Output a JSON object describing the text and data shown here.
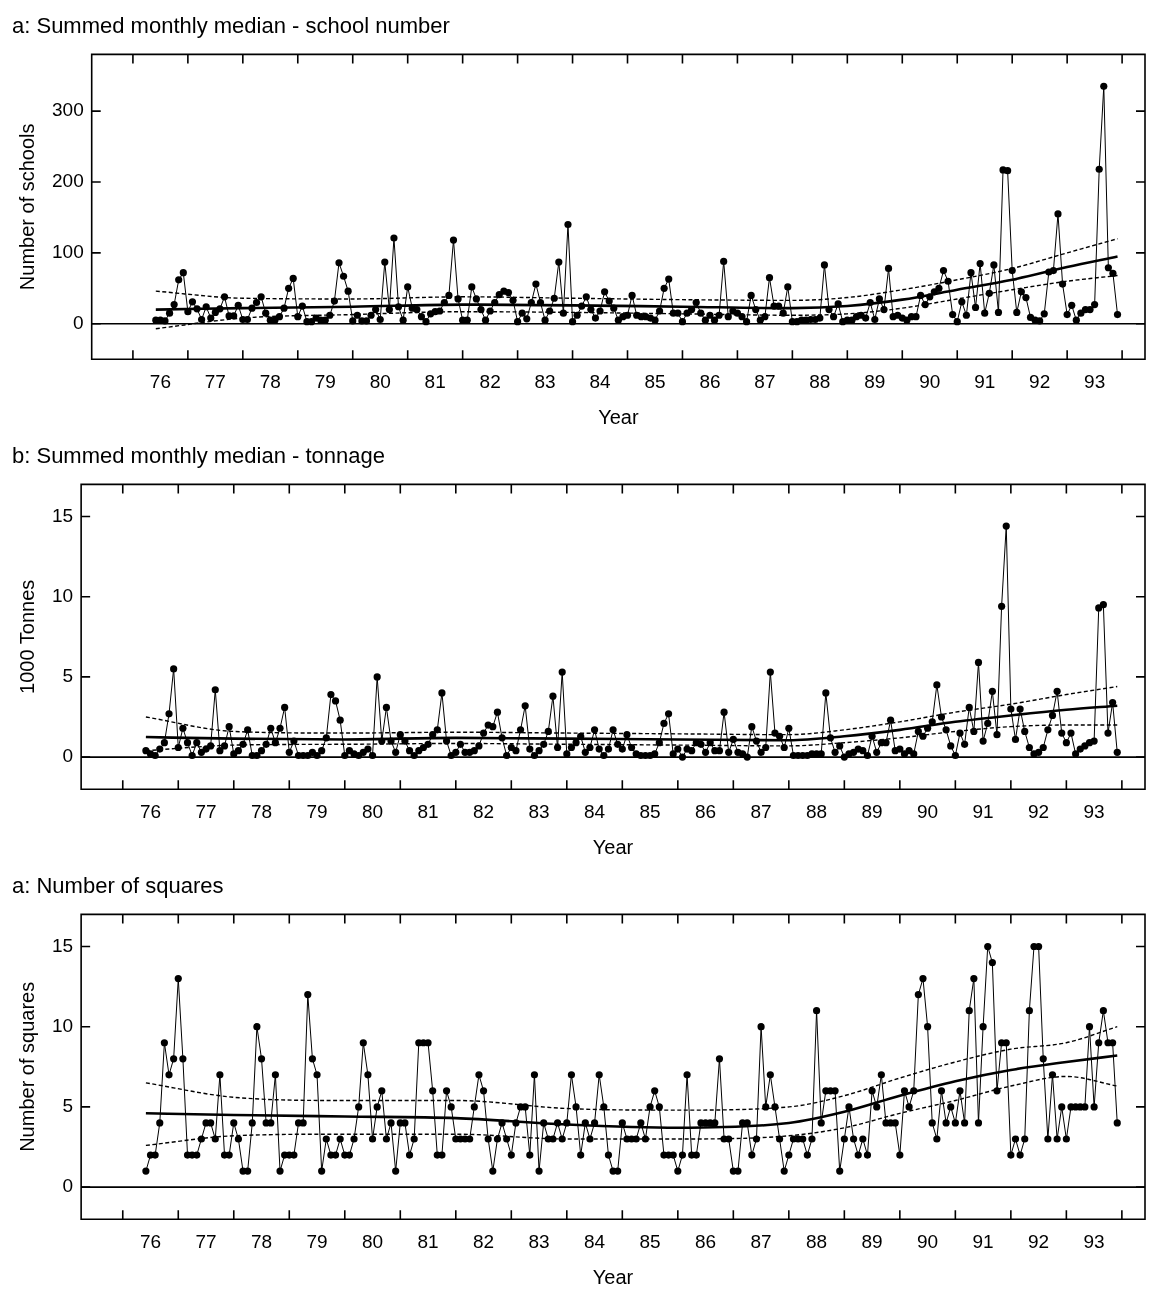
{
  "chart_data": [
    {
      "type": "line",
      "title": "a: Summed monthly median - school number",
      "xlabel": "Year",
      "ylabel": "Number of schools",
      "x": [
        "1976-06",
        "1976-07",
        "1976-08",
        "1976-09",
        "1976-10",
        "1976-11",
        "1976-12",
        "1977-01",
        "1977-02",
        "1977-03",
        "1977-04",
        "1977-05",
        "1977-06",
        "1977-07",
        "1977-08",
        "1977-09",
        "1977-10",
        "1977-11",
        "1977-12",
        "1978-01",
        "1978-02",
        "1978-03",
        "1978-04",
        "1978-05",
        "1978-06",
        "1978-07",
        "1978-08",
        "1978-09",
        "1978-10",
        "1978-11",
        "1978-12",
        "1979-01",
        "1979-02",
        "1979-03",
        "1979-04",
        "1979-05",
        "1979-06",
        "1979-07",
        "1979-08",
        "1979-09",
        "1979-10",
        "1979-11",
        "1979-12",
        "1980-01",
        "1980-02",
        "1980-03",
        "1980-04",
        "1980-05",
        "1980-06",
        "1980-07",
        "1980-08",
        "1980-09",
        "1980-10",
        "1980-11",
        "1980-12",
        "1981-01",
        "1981-02",
        "1981-03",
        "1981-04",
        "1981-05",
        "1981-06",
        "1981-07",
        "1981-08",
        "1981-09",
        "1981-10",
        "1981-11",
        "1981-12",
        "1982-01",
        "1982-02",
        "1982-03",
        "1982-04",
        "1982-05",
        "1982-06",
        "1982-07",
        "1982-08",
        "1982-09",
        "1982-10",
        "1982-11",
        "1982-12",
        "1983-01",
        "1983-02",
        "1983-03",
        "1983-04",
        "1983-05",
        "1983-06",
        "1983-07",
        "1983-08",
        "1983-09",
        "1983-10",
        "1983-11",
        "1983-12",
        "1984-01",
        "1984-02",
        "1984-03",
        "1984-04",
        "1984-05",
        "1984-06",
        "1984-07",
        "1984-08",
        "1984-09",
        "1984-10",
        "1984-11",
        "1984-12",
        "1985-01",
        "1985-02",
        "1985-03",
        "1985-04",
        "1985-05",
        "1985-06",
        "1985-07",
        "1985-08",
        "1985-09",
        "1985-10",
        "1985-11",
        "1985-12",
        "1986-01",
        "1986-02",
        "1986-03",
        "1986-04",
        "1986-05",
        "1986-06",
        "1986-07",
        "1986-08",
        "1986-09",
        "1986-10",
        "1986-11",
        "1986-12",
        "1987-01",
        "1987-02",
        "1987-03",
        "1987-04",
        "1987-05",
        "1987-06",
        "1987-07",
        "1987-08",
        "1987-09",
        "1987-10",
        "1987-11",
        "1987-12",
        "1988-01",
        "1988-02",
        "1988-03",
        "1988-04",
        "1988-05",
        "1988-06",
        "1988-07",
        "1988-08",
        "1988-09",
        "1988-10",
        "1988-11",
        "1988-12",
        "1989-01",
        "1989-02",
        "1989-03",
        "1989-04",
        "1989-05",
        "1989-06",
        "1989-07",
        "1989-08",
        "1989-09",
        "1989-10",
        "1989-11",
        "1989-12",
        "1990-01",
        "1990-02",
        "1990-03",
        "1990-04",
        "1990-05",
        "1990-06",
        "1990-07",
        "1990-08",
        "1990-09",
        "1990-10",
        "1990-11",
        "1990-12",
        "1991-01",
        "1991-02",
        "1991-03",
        "1991-04",
        "1991-05",
        "1991-06",
        "1991-07",
        "1991-08",
        "1991-09",
        "1991-10",
        "1991-11",
        "1991-12",
        "1992-01",
        "1992-02",
        "1992-03",
        "1992-04",
        "1992-05",
        "1992-06",
        "1992-07",
        "1992-08",
        "1992-09",
        "1992-10",
        "1992-11",
        "1992-12",
        "1993-01",
        "1993-02",
        "1993-03",
        "1993-04",
        "1993-05",
        "1993-06",
        "1993-07",
        "1993-08",
        "1993-09",
        "1993-10",
        "1993-11",
        "1993-12"
      ],
      "series": [
        {
          "color": "#000000",
          "marker": "circle",
          "line_style": "solid",
          "values": [
            5,
            5,
            4,
            15,
            27,
            62,
            72,
            17,
            31,
            21,
            6,
            24,
            8,
            16,
            21,
            38,
            11,
            11,
            26,
            6,
            6,
            22,
            30,
            38,
            15,
            5,
            5,
            10,
            22,
            50,
            64,
            10,
            25,
            3,
            3,
            8,
            5,
            5,
            12,
            32,
            86,
            67,
            46,
            4,
            12,
            4,
            4,
            12,
            20,
            6,
            87,
            20,
            121,
            24,
            5,
            52,
            22,
            20,
            10,
            3,
            14,
            17,
            18,
            30,
            40,
            118,
            35,
            5,
            5,
            52,
            35,
            20,
            5,
            18,
            30,
            41,
            46,
            44,
            33,
            3,
            15,
            7,
            30,
            56,
            30,
            5,
            18,
            36,
            87,
            15,
            140,
            3,
            12,
            25,
            38,
            20,
            8,
            18,
            45,
            32,
            22,
            5,
            10,
            12,
            40,
            12,
            10,
            10,
            8,
            5,
            18,
            50,
            63,
            15,
            15,
            3,
            15,
            20,
            30,
            15,
            5,
            12,
            5,
            12,
            88,
            10,
            18,
            15,
            10,
            3,
            40,
            20,
            5,
            10,
            65,
            25,
            25,
            15,
            52,
            3,
            3,
            5,
            5,
            6,
            6,
            8,
            83,
            20,
            10,
            28,
            3,
            5,
            5,
            10,
            12,
            8,
            30,
            6,
            35,
            20,
            78,
            10,
            12,
            8,
            5,
            10,
            10,
            40,
            27,
            38,
            45,
            50,
            75,
            60,
            13,
            3,
            31,
            12,
            72,
            23,
            85,
            15,
            43,
            83,
            16,
            217,
            216,
            75,
            16,
            45,
            37,
            9,
            5,
            4,
            14,
            73,
            75,
            155,
            56,
            13,
            26,
            5,
            15,
            20,
            20,
            27,
            218,
            335,
            79,
            71,
            13
          ]
        },
        {
          "type": "line",
          "color": "#000000",
          "marker": "none",
          "line_style": "solid",
          "x": [
            "1976-06",
            "1978-01",
            "1980-01",
            "1982-01",
            "1984-01",
            "1986-01",
            "1988-01",
            "1989-01",
            "1990-01",
            "1991-01",
            "1992-01",
            "1993-01",
            "1993-12"
          ],
          "values": [
            20,
            22,
            24,
            27,
            26,
            24,
            22,
            25,
            34,
            48,
            62,
            80,
            95
          ]
        },
        {
          "type": "line",
          "color": "#000000",
          "marker": "none",
          "line_style": "dashed",
          "x": [
            "1976-06",
            "1978-01",
            "1980-01",
            "1982-01",
            "1984-01",
            "1986-01",
            "1988-01",
            "1989-01",
            "1990-01",
            "1991-01",
            "1992-01",
            "1993-01",
            "1993-12"
          ],
          "values": [
            -7,
            8,
            13,
            17,
            16,
            14,
            12,
            14,
            22,
            35,
            48,
            60,
            68
          ]
        },
        {
          "type": "line",
          "color": "#000000",
          "marker": "none",
          "line_style": "dashed",
          "x": [
            "1976-06",
            "1978-01",
            "1980-01",
            "1982-01",
            "1984-01",
            "1986-01",
            "1988-01",
            "1989-01",
            "1990-01",
            "1991-01",
            "1992-01",
            "1993-01",
            "1993-12"
          ],
          "values": [
            46,
            36,
            35,
            38,
            36,
            34,
            33,
            37,
            48,
            62,
            78,
            100,
            120
          ]
        }
      ],
      "xlim": [
        "1975-04-01",
        "1994-06-01"
      ],
      "xticks": [
        {
          "value": "1976-01-01",
          "label": null
        },
        {
          "value": "1976-07-01",
          "label": "76"
        },
        {
          "value": "1977-01-01",
          "label": null
        },
        {
          "value": "1977-07-01",
          "label": "77"
        },
        {
          "value": "1978-01-01",
          "label": null
        },
        {
          "value": "1978-07-01",
          "label": "78"
        },
        {
          "value": "1979-01-01",
          "label": null
        },
        {
          "value": "1979-07-01",
          "label": "79"
        },
        {
          "value": "1980-01-01",
          "label": null
        },
        {
          "value": "1980-07-01",
          "label": "80"
        },
        {
          "value": "1981-01-01",
          "label": null
        },
        {
          "value": "1981-07-01",
          "label": "81"
        },
        {
          "value": "1982-01-01",
          "label": null
        },
        {
          "value": "1982-07-01",
          "label": "82"
        },
        {
          "value": "1983-01-01",
          "label": null
        },
        {
          "value": "1983-07-01",
          "label": "83"
        },
        {
          "value": "1984-01-01",
          "label": null
        },
        {
          "value": "1984-07-01",
          "label": "84"
        },
        {
          "value": "1985-01-01",
          "label": null
        },
        {
          "value": "1985-07-01",
          "label": "85"
        },
        {
          "value": "1986-01-01",
          "label": null
        },
        {
          "value": "1986-07-01",
          "label": "86"
        },
        {
          "value": "1987-01-01",
          "label": null
        },
        {
          "value": "1987-07-01",
          "label": "87"
        },
        {
          "value": "1988-01-01",
          "label": null
        },
        {
          "value": "1988-07-01",
          "label": "88"
        },
        {
          "value": "1989-01-01",
          "label": null
        },
        {
          "value": "1989-07-01",
          "label": "89"
        },
        {
          "value": "1990-01-01",
          "label": null
        },
        {
          "value": "1990-07-01",
          "label": "90"
        },
        {
          "value": "1991-01-01",
          "label": null
        },
        {
          "value": "1991-07-01",
          "label": "91"
        },
        {
          "value": "1992-01-01",
          "label": null
        },
        {
          "value": "1992-07-01",
          "label": "92"
        },
        {
          "value": "1993-01-01",
          "label": null
        },
        {
          "value": "1993-07-01",
          "label": "93"
        },
        {
          "value": "1994-01-01",
          "label": null
        }
      ],
      "ylim": [
        -50,
        380
      ],
      "yticks": [
        0,
        100,
        200,
        300
      ],
      "ref_lines": [
        {
          "axis": "y",
          "value": 0,
          "color": "#000000"
        }
      ]
    },
    {
      "type": "line",
      "title": "b: Summed monthly median - tonnage",
      "xlabel": "Year",
      "ylabel": "1000 Tonnes",
      "x": [
        "1976-06",
        "1976-07",
        "1976-08",
        "1976-09",
        "1976-10",
        "1976-11",
        "1976-12",
        "1977-01",
        "1977-02",
        "1977-03",
        "1977-04",
        "1977-05",
        "1977-06",
        "1977-07",
        "1977-08",
        "1977-09",
        "1977-10",
        "1977-11",
        "1977-12",
        "1978-01",
        "1978-02",
        "1978-03",
        "1978-04",
        "1978-05",
        "1978-06",
        "1978-07",
        "1978-08",
        "1978-09",
        "1978-10",
        "1978-11",
        "1978-12",
        "1979-01",
        "1979-02",
        "1979-03",
        "1979-04",
        "1979-05",
        "1979-06",
        "1979-07",
        "1979-08",
        "1979-09",
        "1979-10",
        "1979-11",
        "1979-12",
        "1980-01",
        "1980-02",
        "1980-03",
        "1980-04",
        "1980-05",
        "1980-06",
        "1980-07",
        "1980-08",
        "1980-09",
        "1980-10",
        "1980-11",
        "1980-12",
        "1981-01",
        "1981-02",
        "1981-03",
        "1981-04",
        "1981-05",
        "1981-06",
        "1981-07",
        "1981-08",
        "1981-09",
        "1981-10",
        "1981-11",
        "1981-12",
        "1982-01",
        "1982-02",
        "1982-03",
        "1982-04",
        "1982-05",
        "1982-06",
        "1982-07",
        "1982-08",
        "1982-09",
        "1982-10",
        "1982-11",
        "1982-12",
        "1983-01",
        "1983-02",
        "1983-03",
        "1983-04",
        "1983-05",
        "1983-06",
        "1983-07",
        "1983-08",
        "1983-09",
        "1983-10",
        "1983-11",
        "1983-12",
        "1984-01",
        "1984-02",
        "1984-03",
        "1984-04",
        "1984-05",
        "1984-06",
        "1984-07",
        "1984-08",
        "1984-09",
        "1984-10",
        "1984-11",
        "1984-12",
        "1985-01",
        "1985-02",
        "1985-03",
        "1985-04",
        "1985-05",
        "1985-06",
        "1985-07",
        "1985-08",
        "1985-09",
        "1985-10",
        "1985-11",
        "1985-12",
        "1986-01",
        "1986-02",
        "1986-03",
        "1986-04",
        "1986-05",
        "1986-06",
        "1986-07",
        "1986-08",
        "1986-09",
        "1986-10",
        "1986-11",
        "1986-12",
        "1987-01",
        "1987-02",
        "1987-03",
        "1987-04",
        "1987-05",
        "1987-06",
        "1987-07",
        "1987-08",
        "1987-09",
        "1987-10",
        "1987-11",
        "1987-12",
        "1988-01",
        "1988-02",
        "1988-03",
        "1988-04",
        "1988-05",
        "1988-06",
        "1988-07",
        "1988-08",
        "1988-09",
        "1988-10",
        "1988-11",
        "1988-12",
        "1989-01",
        "1989-02",
        "1989-03",
        "1989-04",
        "1989-05",
        "1989-06",
        "1989-07",
        "1989-08",
        "1989-09",
        "1989-10",
        "1989-11",
        "1989-12",
        "1990-01",
        "1990-02",
        "1990-03",
        "1990-04",
        "1990-05",
        "1990-06",
        "1990-07",
        "1990-08",
        "1990-09",
        "1990-10",
        "1990-11",
        "1990-12",
        "1991-01",
        "1991-02",
        "1991-03",
        "1991-04",
        "1991-05",
        "1991-06",
        "1991-07",
        "1991-08",
        "1991-09",
        "1991-10",
        "1991-11",
        "1991-12",
        "1992-01",
        "1992-02",
        "1992-03",
        "1992-04",
        "1992-05",
        "1992-06",
        "1992-07",
        "1992-08",
        "1992-09",
        "1992-10",
        "1992-11",
        "1992-12",
        "1993-01",
        "1993-02",
        "1993-03",
        "1993-04",
        "1993-05",
        "1993-06",
        "1993-07",
        "1993-08",
        "1993-09",
        "1993-10",
        "1993-11",
        "1993-12"
      ],
      "series": [
        {
          "color": "#000000",
          "marker": "circle",
          "line_style": "solid",
          "values": [
            0.4,
            0.2,
            0.1,
            0.5,
            0.9,
            2.7,
            5.5,
            0.6,
            1.8,
            0.9,
            0.1,
            0.9,
            0.3,
            0.5,
            0.7,
            4.2,
            0.4,
            0.7,
            1.9,
            0.2,
            0.4,
            0.8,
            1.7,
            0.1,
            0.1,
            0.4,
            0.8,
            1.8,
            0.9,
            1.8,
            3.1,
            0.3,
            1.0,
            0.1,
            0.1,
            0.1,
            0.3,
            0.1,
            0.4,
            1.2,
            3.9,
            3.5,
            2.3,
            0.1,
            0.4,
            0.2,
            0.1,
            0.3,
            0.5,
            0.1,
            5.0,
            1.0,
            3.1,
            1.0,
            0.3,
            1.4,
            1.0,
            0.4,
            0.1,
            0.4,
            0.6,
            0.8,
            1.4,
            1.7,
            4.0,
            1.0,
            0.1,
            0.3,
            0.8,
            0.3,
            0.3,
            0.4,
            0.7,
            1.5,
            2.0,
            1.9,
            2.8,
            1.2,
            0.1,
            0.6,
            0.4,
            1.7,
            3.2,
            0.5,
            0.1,
            0.4,
            0.8,
            1.6,
            3.8,
            0.6,
            5.3,
            0.2,
            0.6,
            0.9,
            1.3,
            0.3,
            0.6,
            1.7,
            0.5,
            0.1,
            0.5,
            1.7,
            0.8,
            0.5,
            1.4,
            0.6,
            0.2,
            0.1,
            0.1,
            0.1,
            0.2,
            0.9,
            2.1,
            2.7,
            0.2,
            0.5,
            0.0,
            0.5,
            0.4,
            0.9,
            0.8,
            0.3,
            0.9,
            0.4,
            0.4,
            2.8,
            0.3,
            1.1,
            0.3,
            0.2,
            0.0,
            1.9,
            1.0,
            0.3,
            0.6,
            5.3,
            1.5,
            1.3,
            0.6,
            1.8,
            0.1,
            0.1,
            0.1,
            0.1,
            0.2,
            0.2,
            0.2,
            4.0,
            1.2,
            0.3,
            0.7,
            0.0,
            0.2,
            0.3,
            0.5,
            0.4,
            0.1,
            1.3,
            0.3,
            0.9,
            0.9,
            2.3,
            0.4,
            0.5,
            0.2,
            0.4,
            0.2,
            1.6,
            1.3,
            1.8,
            2.2,
            4.5,
            2.5,
            1.7,
            0.7,
            0.1,
            1.5,
            0.8,
            3.1,
            1.6,
            5.9,
            1.0,
            2.1,
            4.1,
            1.4,
            9.4,
            14.4,
            3.0,
            1.1,
            3.0,
            1.6,
            0.6,
            0.2,
            0.3,
            0.6,
            1.7,
            2.6,
            4.1,
            1.5,
            0.9,
            1.5,
            0.2,
            0.5,
            0.7,
            0.9,
            1.0,
            9.3,
            9.5,
            1.5,
            3.4,
            0.3
          ]
        },
        {
          "type": "line",
          "color": "#000000",
          "marker": "none",
          "line_style": "solid",
          "x": [
            "1976-06",
            "1978-01",
            "1980-01",
            "1982-01",
            "1984-01",
            "1986-01",
            "1988-01",
            "1989-01",
            "1990-01",
            "1991-01",
            "1992-01",
            "1993-01",
            "1993-12"
          ],
          "values": [
            1.25,
            1.15,
            1.1,
            1.2,
            1.15,
            1.1,
            1.05,
            1.3,
            1.7,
            2.2,
            2.6,
            2.95,
            3.2
          ]
        },
        {
          "type": "line",
          "color": "#000000",
          "marker": "none",
          "line_style": "dashed",
          "x": [
            "1976-06",
            "1978-01",
            "1980-01",
            "1982-01",
            "1984-01",
            "1986-01",
            "1988-01",
            "1989-01",
            "1990-01",
            "1991-01",
            "1992-01",
            "1993-01",
            "1993-12"
          ],
          "values": [
            0.4,
            0.75,
            0.8,
            0.85,
            0.8,
            0.75,
            0.7,
            0.9,
            1.2,
            1.6,
            1.9,
            2.0,
            2.0
          ]
        },
        {
          "type": "line",
          "color": "#000000",
          "marker": "none",
          "line_style": "dashed",
          "x": [
            "1976-06",
            "1978-01",
            "1980-01",
            "1982-01",
            "1984-01",
            "1986-01",
            "1988-01",
            "1989-01",
            "1990-01",
            "1991-01",
            "1992-01",
            "1993-01",
            "1993-12"
          ],
          "values": [
            2.5,
            1.6,
            1.5,
            1.55,
            1.5,
            1.45,
            1.4,
            1.7,
            2.2,
            2.8,
            3.3,
            3.9,
            4.4
          ]
        }
      ],
      "xlim": [
        "1975-04-01",
        "1994-06-01"
      ],
      "xticks": [
        {
          "value": "1976-01-01",
          "label": null
        },
        {
          "value": "1976-07-01",
          "label": "76"
        },
        {
          "value": "1977-01-01",
          "label": null
        },
        {
          "value": "1977-07-01",
          "label": "77"
        },
        {
          "value": "1978-01-01",
          "label": null
        },
        {
          "value": "1978-07-01",
          "label": "78"
        },
        {
          "value": "1979-01-01",
          "label": null
        },
        {
          "value": "1979-07-01",
          "label": "79"
        },
        {
          "value": "1980-01-01",
          "label": null
        },
        {
          "value": "1980-07-01",
          "label": "80"
        },
        {
          "value": "1981-01-01",
          "label": null
        },
        {
          "value": "1981-07-01",
          "label": "81"
        },
        {
          "value": "1982-01-01",
          "label": null
        },
        {
          "value": "1982-07-01",
          "label": "82"
        },
        {
          "value": "1983-01-01",
          "label": null
        },
        {
          "value": "1983-07-01",
          "label": "83"
        },
        {
          "value": "1984-01-01",
          "label": null
        },
        {
          "value": "1984-07-01",
          "label": "84"
        },
        {
          "value": "1985-01-01",
          "label": null
        },
        {
          "value": "1985-07-01",
          "label": "85"
        },
        {
          "value": "1986-01-01",
          "label": null
        },
        {
          "value": "1986-07-01",
          "label": "86"
        },
        {
          "value": "1987-01-01",
          "label": null
        },
        {
          "value": "1987-07-01",
          "label": "87"
        },
        {
          "value": "1988-01-01",
          "label": null
        },
        {
          "value": "1988-07-01",
          "label": "88"
        },
        {
          "value": "1989-01-01",
          "label": null
        },
        {
          "value": "1989-07-01",
          "label": "89"
        },
        {
          "value": "1990-01-01",
          "label": null
        },
        {
          "value": "1990-07-01",
          "label": "90"
        },
        {
          "value": "1991-01-01",
          "label": null
        },
        {
          "value": "1991-07-01",
          "label": "91"
        },
        {
          "value": "1992-01-01",
          "label": null
        },
        {
          "value": "1992-07-01",
          "label": "92"
        },
        {
          "value": "1993-01-01",
          "label": null
        },
        {
          "value": "1993-07-01",
          "label": "93"
        },
        {
          "value": "1994-01-01",
          "label": null
        }
      ],
      "ylim": [
        -2,
        17
      ],
      "yticks": [
        0,
        5,
        10,
        15
      ],
      "ref_lines": [
        {
          "axis": "y",
          "value": 0,
          "color": "#000000"
        }
      ]
    },
    {
      "type": "line",
      "title": "a: Number of squares",
      "xlabel": "Year",
      "ylabel": "Number of squares",
      "x": [
        "1976-06",
        "1976-07",
        "1976-08",
        "1976-09",
        "1976-10",
        "1976-11",
        "1976-12",
        "1977-01",
        "1977-02",
        "1977-03",
        "1977-04",
        "1977-05",
        "1977-06",
        "1977-07",
        "1977-08",
        "1977-09",
        "1977-10",
        "1977-11",
        "1977-12",
        "1978-01",
        "1978-02",
        "1978-03",
        "1978-04",
        "1978-05",
        "1978-06",
        "1978-07",
        "1978-08",
        "1978-09",
        "1978-10",
        "1978-11",
        "1978-12",
        "1979-01",
        "1979-02",
        "1979-03",
        "1979-04",
        "1979-05",
        "1979-06",
        "1979-07",
        "1979-08",
        "1979-09",
        "1979-10",
        "1979-11",
        "1979-12",
        "1980-01",
        "1980-02",
        "1980-03",
        "1980-04",
        "1980-05",
        "1980-06",
        "1980-07",
        "1980-08",
        "1980-09",
        "1980-10",
        "1980-11",
        "1980-12",
        "1981-01",
        "1981-02",
        "1981-03",
        "1981-04",
        "1981-05",
        "1981-06",
        "1981-07",
        "1981-08",
        "1981-09",
        "1981-10",
        "1981-11",
        "1981-12",
        "1982-01",
        "1982-02",
        "1982-03",
        "1982-04",
        "1982-05",
        "1982-06",
        "1982-07",
        "1982-08",
        "1982-09",
        "1982-10",
        "1982-11",
        "1982-12",
        "1983-01",
        "1983-02",
        "1983-03",
        "1983-04",
        "1983-05",
        "1983-06",
        "1983-07",
        "1983-08",
        "1983-09",
        "1983-10",
        "1983-11",
        "1983-12",
        "1984-01",
        "1984-02",
        "1984-03",
        "1984-04",
        "1984-05",
        "1984-06",
        "1984-07",
        "1984-08",
        "1984-09",
        "1984-10",
        "1984-11",
        "1984-12",
        "1985-01",
        "1985-02",
        "1985-03",
        "1985-04",
        "1985-05",
        "1985-06",
        "1985-07",
        "1985-08",
        "1985-09",
        "1985-10",
        "1985-11",
        "1985-12",
        "1986-01",
        "1986-02",
        "1986-03",
        "1986-04",
        "1986-05",
        "1986-06",
        "1986-07",
        "1986-08",
        "1986-09",
        "1986-10",
        "1986-11",
        "1986-12",
        "1987-01",
        "1987-02",
        "1987-03",
        "1987-04",
        "1987-05",
        "1987-06",
        "1987-07",
        "1987-08",
        "1987-09",
        "1987-10",
        "1987-11",
        "1987-12",
        "1988-01",
        "1988-02",
        "1988-03",
        "1988-04",
        "1988-05",
        "1988-06",
        "1988-07",
        "1988-08",
        "1988-09",
        "1988-10",
        "1988-11",
        "1988-12",
        "1989-01",
        "1989-02",
        "1989-03",
        "1989-04",
        "1989-05",
        "1989-06",
        "1989-07",
        "1989-08",
        "1989-09",
        "1989-10",
        "1989-11",
        "1989-12",
        "1990-01",
        "1990-02",
        "1990-03",
        "1990-04",
        "1990-05",
        "1990-06",
        "1990-07",
        "1990-08",
        "1990-09",
        "1990-10",
        "1990-11",
        "1990-12",
        "1991-01",
        "1991-02",
        "1991-03",
        "1991-04",
        "1991-05",
        "1991-06",
        "1991-07",
        "1991-08",
        "1991-09",
        "1991-10",
        "1991-11",
        "1991-12",
        "1992-01",
        "1992-02",
        "1992-03",
        "1992-04",
        "1992-05",
        "1992-06",
        "1992-07",
        "1992-08",
        "1992-09",
        "1992-10",
        "1992-11",
        "1992-12",
        "1993-01",
        "1993-02",
        "1993-03",
        "1993-04",
        "1993-05",
        "1993-06",
        "1993-07",
        "1993-08",
        "1993-09",
        "1993-10",
        "1993-11",
        "1993-12"
      ],
      "series": [
        {
          "color": "#000000",
          "marker": "circle",
          "line_style": "solid",
          "values": [
            1,
            2,
            2,
            4,
            9,
            7,
            8,
            13,
            8,
            2,
            2,
            2,
            3,
            4,
            4,
            3,
            7,
            2,
            2,
            4,
            3,
            1,
            1,
            4,
            10,
            8,
            4,
            4,
            7,
            1,
            2,
            2,
            2,
            4,
            4,
            12,
            8,
            7,
            1,
            3,
            2,
            2,
            3,
            2,
            2,
            3,
            5,
            9,
            7,
            3,
            5,
            6,
            3,
            4,
            1,
            4,
            4,
            2,
            3,
            9,
            9,
            9,
            6,
            2,
            2,
            6,
            5,
            3,
            3,
            3,
            3,
            5,
            7,
            6,
            3,
            1,
            3,
            4,
            3,
            2,
            4,
            5,
            5,
            2,
            7,
            1,
            4,
            3,
            3,
            4,
            3,
            4,
            7,
            5,
            2,
            4,
            3,
            4,
            7,
            5,
            2,
            1,
            1,
            4,
            3,
            3,
            3,
            4,
            3,
            5,
            6,
            5,
            2,
            2,
            2,
            1,
            2,
            7,
            2,
            2,
            4,
            4,
            4,
            4,
            8,
            3,
            3,
            1,
            1,
            4,
            4,
            2,
            3,
            10,
            5,
            7,
            5,
            3,
            1,
            2,
            3,
            3,
            3,
            2,
            3,
            11,
            4,
            6,
            6,
            6,
            1,
            3,
            5,
            3,
            2,
            3,
            2,
            6,
            5,
            7,
            4,
            4,
            4,
            2,
            6,
            5,
            6,
            12,
            13,
            10,
            4,
            3,
            6,
            4,
            5,
            4,
            6,
            4,
            11,
            13,
            4,
            10,
            15,
            14,
            6,
            9,
            9,
            2,
            3,
            2,
            3,
            11,
            15,
            15,
            8,
            3,
            7,
            3,
            5,
            3,
            5,
            5,
            5,
            5,
            10,
            5,
            9,
            11,
            9,
            9,
            4
          ]
        },
        {
          "type": "line",
          "color": "#000000",
          "marker": "none",
          "line_style": "solid",
          "x": [
            "1976-06",
            "1978-01",
            "1980-01",
            "1982-01",
            "1984-01",
            "1986-01",
            "1988-01",
            "1989-01",
            "1990-01",
            "1991-01",
            "1992-01",
            "1993-01",
            "1993-12"
          ],
          "values": [
            4.6,
            4.5,
            4.4,
            4.3,
            3.9,
            3.7,
            4.0,
            4.7,
            5.7,
            6.6,
            7.3,
            7.8,
            8.2
          ]
        },
        {
          "type": "line",
          "color": "#000000",
          "marker": "none",
          "line_style": "dashed",
          "x": [
            "1976-06",
            "1978-01",
            "1980-01",
            "1982-01",
            "1984-01",
            "1986-01",
            "1988-01",
            "1989-01",
            "1990-01",
            "1991-01",
            "1992-01",
            "1993-01",
            "1993-12"
          ],
          "values": [
            2.6,
            3.2,
            3.3,
            3.3,
            3.0,
            3.0,
            3.2,
            3.7,
            4.6,
            5.4,
            6.3,
            6.9,
            6.3
          ]
        },
        {
          "type": "line",
          "color": "#000000",
          "marker": "none",
          "line_style": "dashed",
          "x": [
            "1976-06",
            "1978-01",
            "1980-01",
            "1982-01",
            "1984-01",
            "1986-01",
            "1988-01",
            "1989-01",
            "1990-01",
            "1991-01",
            "1992-01",
            "1993-01",
            "1993-12"
          ],
          "values": [
            6.5,
            5.6,
            5.4,
            5.4,
            4.9,
            4.8,
            5.0,
            5.7,
            6.8,
            7.8,
            8.6,
            9.0,
            10.0
          ]
        }
      ],
      "xlim": [
        "1975-04-01",
        "1994-06-01"
      ],
      "xticks": [
        {
          "value": "1976-01-01",
          "label": null
        },
        {
          "value": "1976-07-01",
          "label": "76"
        },
        {
          "value": "1977-01-01",
          "label": null
        },
        {
          "value": "1977-07-01",
          "label": "77"
        },
        {
          "value": "1978-01-01",
          "label": null
        },
        {
          "value": "1978-07-01",
          "label": "78"
        },
        {
          "value": "1979-01-01",
          "label": null
        },
        {
          "value": "1979-07-01",
          "label": "79"
        },
        {
          "value": "1980-01-01",
          "label": null
        },
        {
          "value": "1980-07-01",
          "label": "80"
        },
        {
          "value": "1981-01-01",
          "label": null
        },
        {
          "value": "1981-07-01",
          "label": "81"
        },
        {
          "value": "1982-01-01",
          "label": null
        },
        {
          "value": "1982-07-01",
          "label": "82"
        },
        {
          "value": "1983-01-01",
          "label": null
        },
        {
          "value": "1983-07-01",
          "label": "83"
        },
        {
          "value": "1984-01-01",
          "label": null
        },
        {
          "value": "1984-07-01",
          "label": "84"
        },
        {
          "value": "1985-01-01",
          "label": null
        },
        {
          "value": "1985-07-01",
          "label": "85"
        },
        {
          "value": "1986-01-01",
          "label": null
        },
        {
          "value": "1986-07-01",
          "label": "86"
        },
        {
          "value": "1987-01-01",
          "label": null
        },
        {
          "value": "1987-07-01",
          "label": "87"
        },
        {
          "value": "1988-01-01",
          "label": null
        },
        {
          "value": "1988-07-01",
          "label": "88"
        },
        {
          "value": "1989-01-01",
          "label": null
        },
        {
          "value": "1989-07-01",
          "label": "89"
        },
        {
          "value": "1990-01-01",
          "label": null
        },
        {
          "value": "1990-07-01",
          "label": "90"
        },
        {
          "value": "1991-01-01",
          "label": null
        },
        {
          "value": "1991-07-01",
          "label": "91"
        },
        {
          "value": "1992-01-01",
          "label": null
        },
        {
          "value": "1992-07-01",
          "label": "92"
        },
        {
          "value": "1993-01-01",
          "label": null
        },
        {
          "value": "1993-07-01",
          "label": "93"
        },
        {
          "value": "1994-01-01",
          "label": null
        }
      ],
      "ylim": [
        -2,
        17
      ],
      "yticks": [
        0,
        5,
        10,
        15
      ],
      "ref_lines": [
        {
          "axis": "y",
          "value": 0,
          "color": "#000000"
        }
      ]
    }
  ]
}
